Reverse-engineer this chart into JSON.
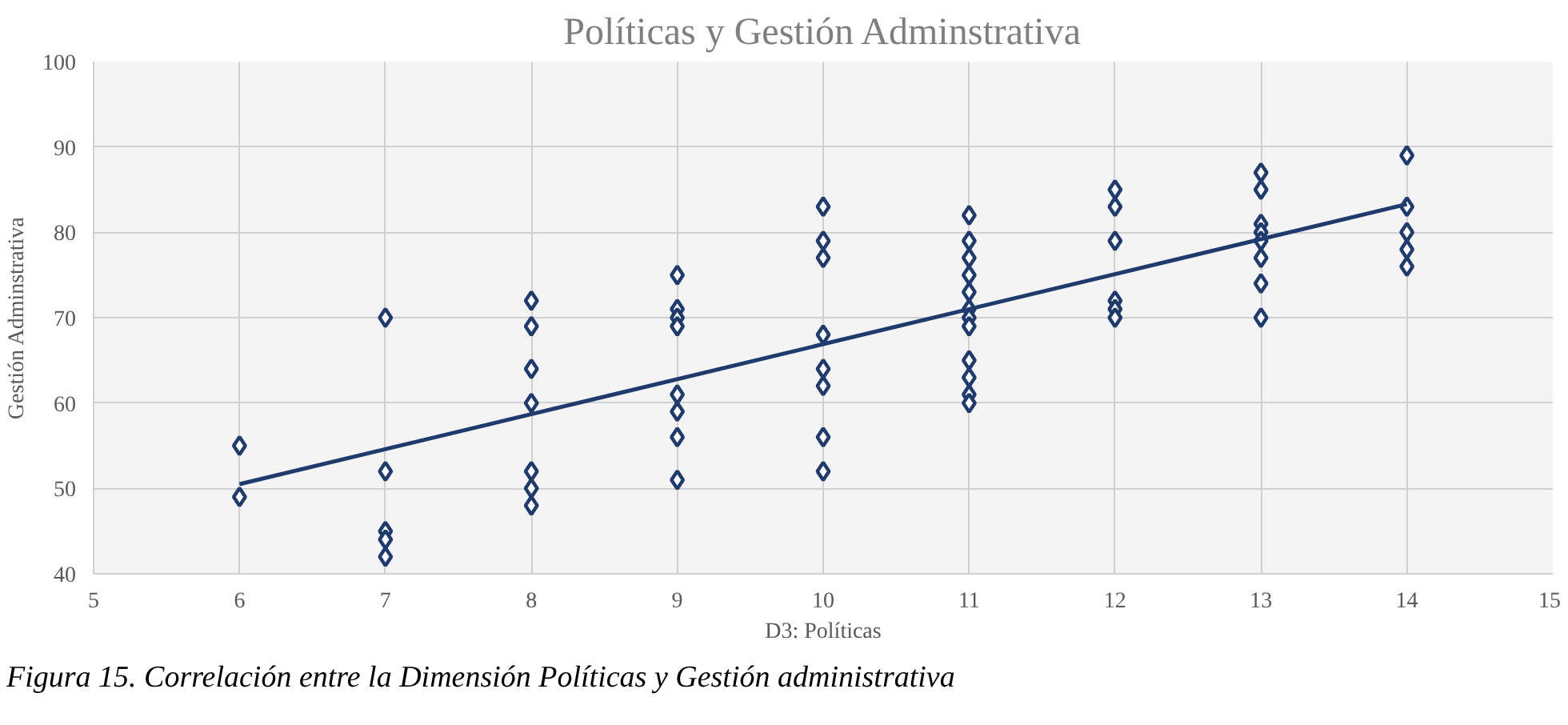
{
  "chart_data": {
    "type": "scatter",
    "title": "Políticas y Gestión Adminstrativa",
    "xlabel": "D3: Políticas",
    "ylabel": "Gestión Adminstrativa",
    "xlim": [
      5,
      15
    ],
    "xticks": [
      5,
      6,
      7,
      8,
      9,
      10,
      11,
      12,
      13,
      14,
      15
    ],
    "ylim": [
      40,
      100
    ],
    "yticks": [
      40,
      50,
      60,
      70,
      80,
      90,
      100
    ],
    "grid": true,
    "marker": "diamond",
    "series": [
      {
        "color": "#1f3b6e",
        "x": [
          6,
          6,
          7,
          7,
          7,
          7,
          7,
          8,
          8,
          8,
          8,
          8,
          8,
          8,
          9,
          9,
          9,
          9,
          9,
          9,
          9,
          9,
          10,
          10,
          10,
          10,
          10,
          10,
          10,
          10,
          11,
          11,
          11,
          11,
          11,
          11,
          11,
          11,
          11,
          11,
          11,
          11,
          12,
          12,
          12,
          12,
          12,
          12,
          13,
          13,
          13,
          13,
          13,
          13,
          13,
          13,
          14,
          14,
          14,
          14,
          14
        ],
        "values": [
          55,
          49,
          70,
          52,
          45,
          44,
          42,
          72,
          69,
          64,
          60,
          52,
          50,
          48,
          75,
          71,
          70,
          69,
          61,
          59,
          56,
          51,
          83,
          79,
          77,
          68,
          64,
          62,
          56,
          52,
          82,
          79,
          77,
          75,
          73,
          71,
          70,
          69,
          65,
          63,
          61,
          60,
          85,
          83,
          79,
          72,
          71,
          70,
          87,
          85,
          81,
          80,
          79,
          77,
          74,
          70,
          89,
          83,
          80,
          78,
          76
        ]
      },
      {
        "type": "line",
        "color": "#1f3b6e",
        "marker": "none",
        "x": [
          6,
          14
        ],
        "values": [
          50.5,
          83.3
        ]
      }
    ],
    "annotations": [
      "Figura 15. Correlación entre la Dimensión Políticas y Gestión administrativa"
    ]
  }
}
